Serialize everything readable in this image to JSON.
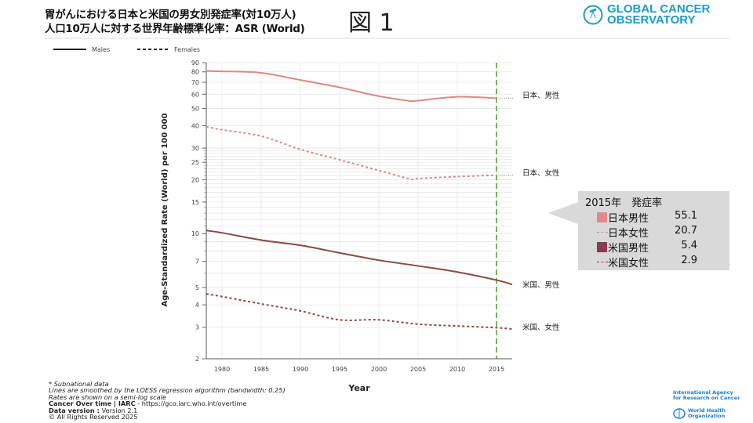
{
  "header": {
    "title_line1": "胃がんにおける日本と米国の男女別発症率(対10万人)",
    "title_line2": "人口10万人に対する世界年齢標準化率：ASR (World)",
    "figure_label": "図 1",
    "logo_text_1": "GLOBAL CANCER",
    "logo_text_2": "OBSERVATORY"
  },
  "chart_data": {
    "type": "line",
    "title": "",
    "xlabel": "Year",
    "ylabel": "Age-Standardized Rate (World) per 100 000",
    "xlim": [
      1978,
      2017
    ],
    "ylim": [
      2,
      90
    ],
    "yscale": "log",
    "grid": true,
    "x_ticks": [
      1980,
      1985,
      1990,
      1995,
      2000,
      2005,
      2010,
      2015
    ],
    "y_ticks": [
      2,
      3,
      4,
      5,
      7,
      10,
      15,
      20,
      25,
      30,
      40,
      50,
      60,
      70,
      80,
      90
    ],
    "legend": {
      "placement": "top-left",
      "entries": [
        "Males",
        "Females"
      ]
    },
    "reference_line": {
      "x": 2015,
      "color": "#4a9a2a",
      "style": "dashed"
    },
    "series": [
      {
        "name": "日本、男性",
        "style": "solid",
        "color": "#d98a84",
        "x": [
          1978,
          1980,
          1985,
          1990,
          1995,
          2000,
          2004,
          2005,
          2010,
          2015
        ],
        "y": [
          81,
          80.5,
          79,
          72,
          65.5,
          58.5,
          55,
          55.2,
          58,
          57
        ]
      },
      {
        "name": "日本、女性",
        "style": "dashed",
        "color": "#d98a84",
        "x": [
          1978,
          1980,
          1985,
          1990,
          1995,
          2000,
          2004,
          2005,
          2010,
          2015
        ],
        "y": [
          39.5,
          38,
          35,
          29.5,
          25.8,
          22.5,
          20.2,
          20.3,
          20.8,
          21.2
        ]
      },
      {
        "name": "米国、男性",
        "style": "solid",
        "color": "#8b4a42",
        "x": [
          1978,
          1980,
          1985,
          1990,
          1995,
          2000,
          2005,
          2010,
          2015,
          2017
        ],
        "y": [
          10.4,
          10.1,
          9.2,
          8.6,
          7.8,
          7.1,
          6.6,
          6.1,
          5.5,
          5.2
        ]
      },
      {
        "name": "米国、女性",
        "style": "dashed",
        "color": "#8b4a42",
        "x": [
          1978,
          1980,
          1985,
          1990,
          1995,
          2000,
          2005,
          2010,
          2015,
          2017
        ],
        "y": [
          4.6,
          4.45,
          4.05,
          3.7,
          3.3,
          3.3,
          3.12,
          3.05,
          2.98,
          2.93
        ]
      }
    ]
  },
  "callout": {
    "heading": "2015年　発症率",
    "items": [
      {
        "label": "日本男性",
        "value": "55.1",
        "marker": "square",
        "color": "#e08a8a"
      },
      {
        "label": "日本女性",
        "value": "20.7",
        "marker": "dash",
        "color": "#e08a8a"
      },
      {
        "label": "米国男性",
        "value": "5.4",
        "marker": "square",
        "color": "#8b3a52"
      },
      {
        "label": "米国女性",
        "value": "2.9",
        "marker": "dash",
        "color": "#8b3a52"
      }
    ]
  },
  "notes": {
    "line1": "* Subnational data",
    "line2": "Lines are smoothed by the LOESS regression algorithm (bandwidth: 0.25)",
    "line3": "Rates are shown on a semi-log scale",
    "source_bold": "Cancer Over time | IARC",
    "source_rest": " - https://gco.iarc.who.int/overtime",
    "version_bold": "Data version : ",
    "version_rest": "Version 2.1",
    "copyright": "© All Rights Reserved 2025"
  },
  "footer_logos": {
    "iarc_1": "International Agency",
    "iarc_2": "for Research on Cancer",
    "who_1": "World Health",
    "who_2": "Organization"
  }
}
